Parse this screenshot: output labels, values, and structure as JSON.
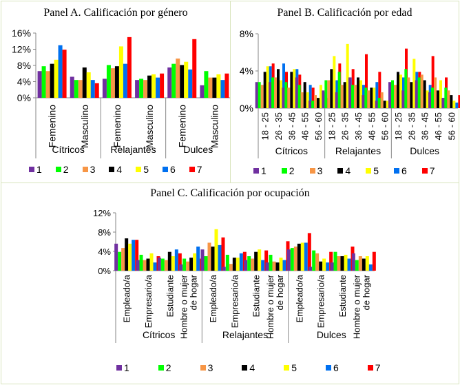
{
  "series_colors": {
    "1": "#7030a0",
    "2": "#00ff00",
    "3": "#f79646",
    "4": "#000000",
    "5": "#ffff00",
    "6": "#0070f0",
    "7": "#ff0000"
  },
  "chart_data": [
    {
      "id": "panelA",
      "type": "bar",
      "title": "Panel A. Calificación por género",
      "xlabel": "",
      "ylabel": "",
      "ylim": [
        0,
        0.16
      ],
      "yticks": [
        "0%",
        "4%",
        "8%",
        "12%",
        "16%"
      ],
      "groups": [
        "Cítricos",
        "Relajantes",
        "Dulces"
      ],
      "categories": [
        "Femenino",
        "Masculino"
      ],
      "legend_position": "bottom",
      "series": [
        {
          "name": "1",
          "values": [
            6.6,
            5.2,
            4.7,
            4.4,
            7.5,
            3.1
          ]
        },
        {
          "name": "2",
          "values": [
            7.8,
            4.4,
            8.1,
            4.7,
            8.4,
            6.6
          ]
        },
        {
          "name": "3",
          "values": [
            6.6,
            4.4,
            7.3,
            4.4,
            9.7,
            5.0
          ]
        },
        {
          "name": "4",
          "values": [
            8.4,
            7.5,
            7.8,
            5.5,
            8.1,
            5.0
          ]
        },
        {
          "name": "5",
          "values": [
            9.4,
            6.3,
            12.7,
            5.8,
            8.9,
            5.8
          ]
        },
        {
          "name": "6",
          "values": [
            13.0,
            4.4,
            8.4,
            5.0,
            7.0,
            4.4
          ]
        },
        {
          "name": "7",
          "values": [
            11.9,
            3.6,
            15.0,
            6.0,
            14.5,
            6.0
          ]
        }
      ]
    },
    {
      "id": "panelB",
      "type": "bar",
      "title": "Panel B. Calificación por edad",
      "xlabel": "",
      "ylabel": "",
      "ylim": [
        0,
        0.08
      ],
      "yticks": [
        "0%",
        "4%",
        "8%"
      ],
      "groups": [
        "Cítricos",
        "Relajantes",
        "Dulces"
      ],
      "categories": [
        "18 - 25",
        "26 - 35",
        "36 - 45",
        "46 - 55",
        "56 - 60"
      ],
      "legend_position": "bottom",
      "series": [
        {
          "name": "1",
          "values": [
            2.8,
            2.8,
            2.2,
            3.3,
            0.8,
            1.9,
            1.7,
            3.3,
            1.4,
            0.8,
            2.8,
            1.9,
            3.0,
            1.7,
            1.1
          ]
        },
        {
          "name": "2",
          "values": [
            2.8,
            3.3,
            2.8,
            2.5,
            0.8,
            3.0,
            3.9,
            2.5,
            2.2,
            1.1,
            3.0,
            4.2,
            3.3,
            2.2,
            2.2
          ]
        },
        {
          "name": "3",
          "values": [
            2.5,
            3.3,
            2.2,
            1.7,
            1.4,
            3.0,
            2.5,
            2.5,
            1.9,
            1.7,
            2.5,
            3.3,
            3.6,
            3.3,
            1.9
          ]
        },
        {
          "name": "4",
          "values": [
            3.9,
            4.2,
            3.9,
            2.8,
            1.1,
            4.2,
            2.8,
            3.3,
            2.2,
            0.8,
            3.9,
            2.8,
            3.0,
            1.9,
            1.4
          ]
        },
        {
          "name": "5",
          "values": [
            4.5,
            3.0,
            4.2,
            1.7,
            2.5,
            5.6,
            6.9,
            3.0,
            2.2,
            0.8,
            3.6,
            5.3,
            1.9,
            3.0,
            0.8
          ]
        },
        {
          "name": "6",
          "values": [
            4.5,
            4.8,
            4.2,
            2.5,
            1.7,
            3.0,
            3.3,
            2.5,
            2.8,
            1.7,
            3.3,
            3.9,
            2.5,
            1.1,
            0.6
          ]
        },
        {
          "name": "7",
          "values": [
            4.8,
            3.9,
            3.6,
            2.2,
            1.1,
            4.8,
            4.2,
            5.8,
            3.9,
            2.5,
            6.4,
            3.9,
            5.6,
            3.3,
            1.4
          ]
        }
      ]
    },
    {
      "id": "panelC",
      "type": "bar",
      "title": "Panel C. Calificación por ocupación",
      "xlabel": "",
      "ylabel": "",
      "ylim": [
        0,
        0.12
      ],
      "yticks": [
        "0%",
        "4%",
        "8%",
        "12%"
      ],
      "groups": [
        "Cítricos",
        "Relajantes",
        "Dulces"
      ],
      "categories": [
        "Empleado/a",
        "Empresario/a",
        "Estudiante",
        "Hombre o mujer de hogar"
      ],
      "legend_position": "bottom",
      "series": [
        {
          "name": "1",
          "values": [
            5.6,
            2.2,
            2.7,
            1.3,
            4.4,
            0.8,
            2.2,
            1.7,
            4.4,
            0.8,
            1.7,
            3.6
          ]
        },
        {
          "name": "2",
          "values": [
            3.9,
            3.3,
            2.5,
            2.5,
            3.0,
            3.3,
            3.0,
            3.3,
            4.7,
            4.2,
            3.9,
            2.2
          ]
        },
        {
          "name": "3",
          "values": [
            4.7,
            2.2,
            2.2,
            1.9,
            5.8,
            1.4,
            2.5,
            1.9,
            5.0,
            3.6,
            3.0,
            3.0
          ]
        },
        {
          "name": "4",
          "values": [
            6.7,
            2.5,
            3.9,
            2.7,
            5.0,
            2.7,
            3.9,
            1.7,
            5.6,
            1.9,
            3.0,
            2.5
          ]
        },
        {
          "name": "5",
          "values": [
            5.6,
            3.6,
            3.0,
            3.6,
            8.6,
            2.7,
            4.4,
            2.7,
            5.8,
            2.5,
            3.3,
            3.0
          ]
        },
        {
          "name": "6",
          "values": [
            6.4,
            1.7,
            4.4,
            5.0,
            5.3,
            3.6,
            2.2,
            2.2,
            5.8,
            1.7,
            2.5,
            1.3
          ]
        },
        {
          "name": "7",
          "values": [
            6.4,
            3.0,
            3.6,
            2.5,
            6.9,
            3.9,
            4.2,
            6.1,
            7.8,
            3.9,
            5.0,
            3.9
          ]
        }
      ]
    }
  ],
  "legend_labels": [
    "1",
    "2",
    "3",
    "4",
    "5",
    "6",
    "7"
  ]
}
